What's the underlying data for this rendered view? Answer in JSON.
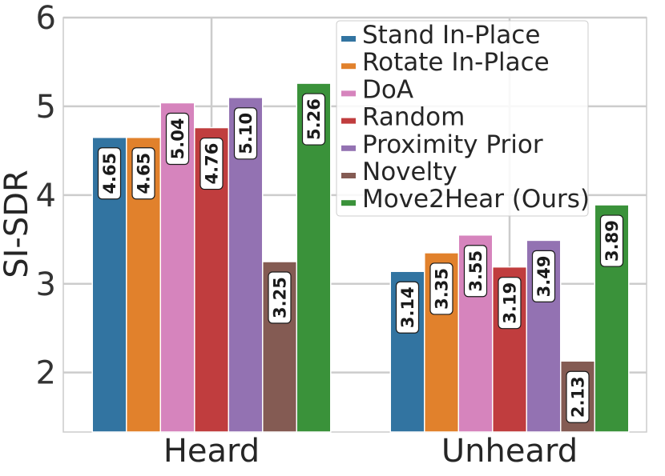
{
  "chart_data": {
    "type": "bar",
    "categories": [
      "Heard",
      "Unheard"
    ],
    "ylabel": "SI-SDR",
    "ylim": [
      1.33,
      6.0
    ],
    "yticks": [
      "2",
      "3",
      "4",
      "5",
      "6"
    ],
    "grid": true,
    "legend_position": "top-right",
    "series": [
      {
        "name": "Stand In-Place",
        "color": "#3274a1",
        "values": [
          4.65,
          3.14
        ],
        "labels": [
          "4.65",
          "3.14"
        ]
      },
      {
        "name": "Rotate In-Place",
        "color": "#e1812c",
        "values": [
          4.65,
          3.35
        ],
        "labels": [
          "4.65",
          "3.35"
        ]
      },
      {
        "name": "DoA",
        "color": "#d684bd",
        "values": [
          5.04,
          3.55
        ],
        "labels": [
          "5.04",
          "3.55"
        ]
      },
      {
        "name": "Random",
        "color": "#c03d3e",
        "values": [
          4.76,
          3.19
        ],
        "labels": [
          "4.76",
          "3.19"
        ]
      },
      {
        "name": "Proximity Prior",
        "color": "#9372b2",
        "values": [
          5.1,
          3.49
        ],
        "labels": [
          "5.10",
          "3.49"
        ]
      },
      {
        "name": "Novelty",
        "color": "#845b53",
        "values": [
          3.25,
          2.13
        ],
        "labels": [
          "3.25",
          "2.13"
        ]
      },
      {
        "name": "Move2Hear (Ours)",
        "color": "#3a923a",
        "values": [
          5.26,
          3.89
        ],
        "labels": [
          "5.26",
          "3.89"
        ]
      }
    ]
  }
}
